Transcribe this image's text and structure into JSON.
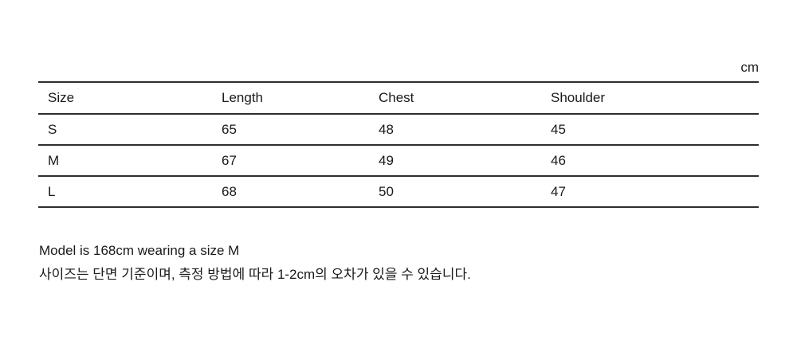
{
  "unit_label": "cm",
  "table": {
    "headers": [
      "Size",
      "Length",
      "Chest",
      "Shoulder"
    ],
    "rows": [
      {
        "cells": [
          "S",
          "65",
          "48",
          "45"
        ]
      },
      {
        "cells": [
          "M",
          "67",
          "49",
          "46"
        ]
      },
      {
        "cells": [
          "L",
          "68",
          "50",
          "47"
        ]
      }
    ]
  },
  "notes": {
    "line1": "Model is 168cm wearing a size M",
    "line2": "사이즈는 단면 기준이며, 측정 방법에 따라 1-2cm의 오차가 있을 수 있습니다."
  },
  "colors": {
    "text": "#1a1a1a",
    "line": "#2e2e2e",
    "background": "#ffffff"
  }
}
